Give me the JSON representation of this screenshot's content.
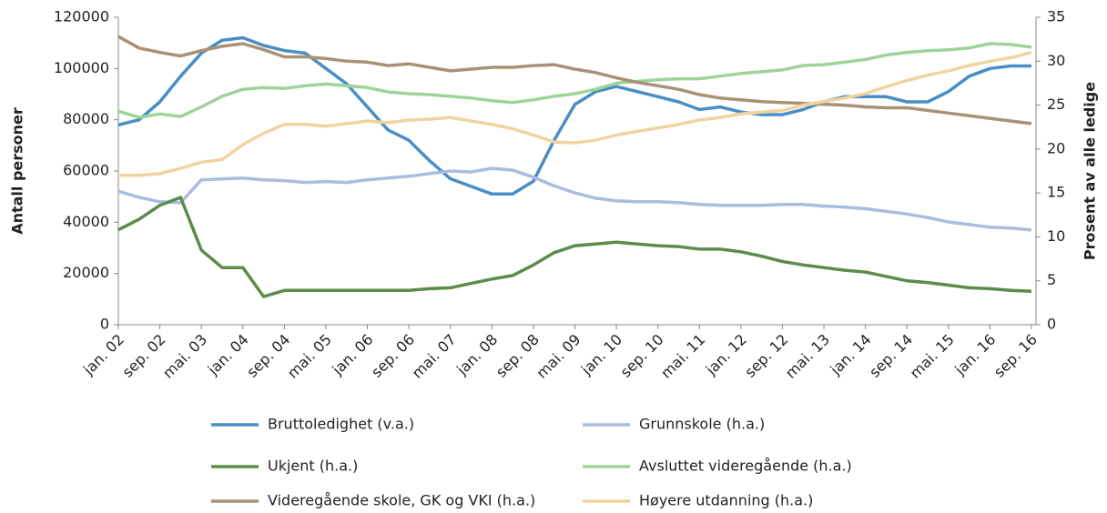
{
  "chart_data": {
    "type": "line",
    "ylabel": "Antall personer",
    "y2label": "Prosent av alle ledige",
    "categories": [
      "jan. 02",
      null,
      "sep. 02",
      null,
      "mai. 03",
      null,
      "jan. 04",
      null,
      "sep. 04",
      null,
      "mai. 05",
      null,
      "jan. 06",
      null,
      "sep. 06",
      null,
      "mai. 07",
      null,
      "jan. 08",
      null,
      "sep. 08",
      null,
      "mai. 09",
      null,
      "jan. 10",
      null,
      "sep. 10",
      null,
      "mai. 11",
      null,
      "jan. 12",
      null,
      "sep. 12",
      null,
      "mai. 13",
      null,
      "jan. 14",
      null,
      "sep. 14",
      null,
      "mai. 15",
      null,
      "jan. 16",
      null,
      "sep. 16"
    ],
    "ylim": [
      0,
      120000
    ],
    "yticks": [
      0,
      20000,
      40000,
      60000,
      80000,
      100000,
      120000
    ],
    "y2lim": [
      0,
      35
    ],
    "y2ticks": [
      0,
      5,
      10,
      15,
      20,
      25,
      30,
      35
    ],
    "grid": false,
    "series": [
      {
        "name": "Bruttoledighet (v.a.)",
        "color": "#4a8ec6",
        "values": [
          78000,
          80000,
          87000,
          97000,
          106000,
          111000,
          112000,
          109000,
          107000,
          106000,
          100000,
          94000,
          85000,
          76000,
          72000,
          64000,
          57000,
          54000,
          51000,
          51000,
          56000,
          72000,
          86000,
          91000,
          93000,
          91000,
          89000,
          87000,
          84000,
          85000,
          83000,
          82000,
          82000,
          84000,
          87000,
          89000,
          89000,
          89000,
          87000,
          87000,
          91000,
          97000,
          100000,
          101000,
          101000
        ]
      },
      {
        "name": "Grunnskole (h.a.)",
        "color": "#aabce0",
        "axis": "y2",
        "values": [
          15.2,
          14.5,
          14.0,
          13.9,
          16.5,
          16.6,
          16.7,
          16.5,
          16.4,
          16.2,
          16.3,
          16.2,
          16.5,
          16.7,
          16.9,
          17.2,
          17.5,
          17.4,
          17.8,
          17.6,
          16.8,
          15.8,
          15.0,
          14.4,
          14.1,
          14.0,
          14.0,
          13.9,
          13.7,
          13.6,
          13.6,
          13.6,
          13.7,
          13.7,
          13.5,
          13.4,
          13.2,
          12.9,
          12.6,
          12.2,
          11.7,
          11.4,
          11.1,
          11.0,
          10.8
        ]
      },
      {
        "name": "Ukjent (h.a.)",
        "color": "#5b8c4a",
        "axis": "y2",
        "values": [
          10.8,
          12,
          13.6,
          14.5,
          8.5,
          6.5,
          6.5,
          3.2,
          3.9,
          3.9,
          3.9,
          3.9,
          3.9,
          3.9,
          3.9,
          4.1,
          4.2,
          4.7,
          5.2,
          5.6,
          6.8,
          8.2,
          9.0,
          9.2,
          9.4,
          9.2,
          9.0,
          8.9,
          8.6,
          8.6,
          8.3,
          7.8,
          7.2,
          6.8,
          6.5,
          6.2,
          6.0,
          5.5,
          5.0,
          4.8,
          4.5,
          4.2,
          4.1,
          3.9,
          3.8
        ]
      },
      {
        "name": "Avsluttet videregående (h.a.)",
        "color": "#9dd49a",
        "axis": "y2",
        "values": [
          24.3,
          23.6,
          24.0,
          23.7,
          24.8,
          26.0,
          26.8,
          27.0,
          26.9,
          27.2,
          27.4,
          27.2,
          27.0,
          26.5,
          26.3,
          26.2,
          26.0,
          25.8,
          25.5,
          25.3,
          25.6,
          26.0,
          26.3,
          26.8,
          27.5,
          27.7,
          27.9,
          28.0,
          28.0,
          28.3,
          28.6,
          28.8,
          29.0,
          29.5,
          29.6,
          29.9,
          30.2,
          30.7,
          31.0,
          31.2,
          31.3,
          31.5,
          32.0,
          31.9,
          31.6
        ]
      },
      {
        "name": "Videregående skole, GK og VKI (h.a.)",
        "color": "#a89277",
        "axis": "y2",
        "values": [
          32.8,
          31.5,
          31.0,
          30.6,
          31.2,
          31.7,
          32.0,
          31.3,
          30.5,
          30.5,
          30.3,
          30.0,
          29.9,
          29.5,
          29.7,
          29.3,
          28.9,
          29.1,
          29.3,
          29.3,
          29.5,
          29.6,
          29.1,
          28.7,
          28.1,
          27.6,
          27.2,
          26.8,
          26.2,
          25.8,
          25.6,
          25.4,
          25.3,
          25.2,
          25.1,
          25.0,
          24.8,
          24.7,
          24.7,
          24.4,
          24.1,
          23.8,
          23.5,
          23.2,
          22.9
        ]
      },
      {
        "name": "Høyere utdanning (h.a.)",
        "color": "#f1d3a0",
        "axis": "y2",
        "values": [
          17.0,
          17.0,
          17.2,
          17.8,
          18.5,
          18.8,
          20.5,
          21.8,
          22.8,
          22.8,
          22.6,
          22.9,
          23.2,
          23.0,
          23.3,
          23.4,
          23.6,
          23.2,
          22.8,
          22.3,
          21.6,
          20.8,
          20.7,
          21.0,
          21.6,
          22.0,
          22.4,
          22.8,
          23.3,
          23.6,
          24.0,
          24.2,
          24.4,
          25.0,
          25.4,
          25.8,
          26.3,
          27.1,
          27.8,
          28.4,
          28.9,
          29.5,
          30.0,
          30.4,
          31.0
        ]
      }
    ]
  }
}
